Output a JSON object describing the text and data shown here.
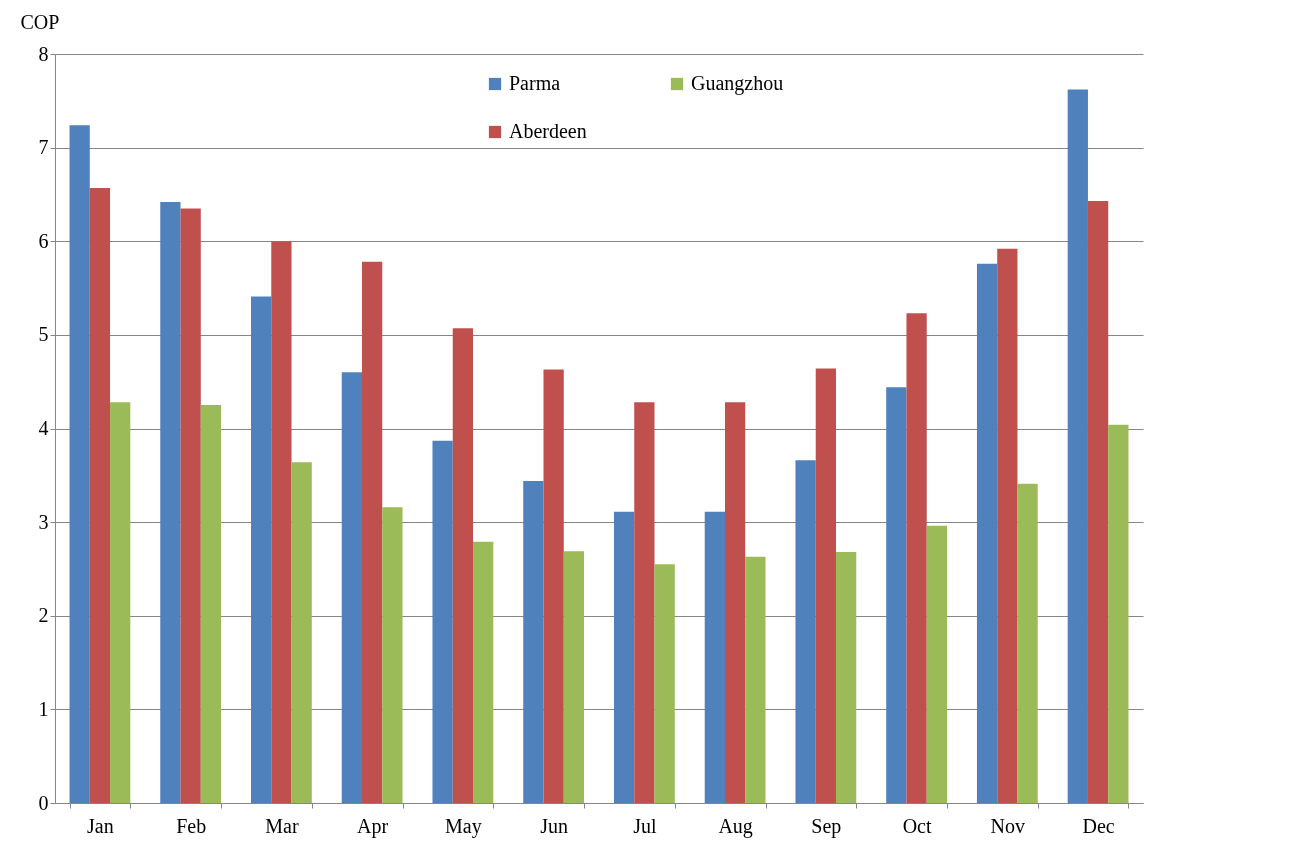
{
  "chart_data": {
    "type": "bar",
    "ylabel": "COP",
    "categories": [
      "Jan",
      "Feb",
      "Mar",
      "Apr",
      "May",
      "Jun",
      "Jul",
      "Aug",
      "Sep",
      "Oct",
      "Nov",
      "Dec"
    ],
    "series": [
      {
        "name": "Parma",
        "color": "#4f81bd",
        "values": [
          7.24,
          6.42,
          5.41,
          4.6,
          3.87,
          3.44,
          3.11,
          3.11,
          3.66,
          4.44,
          5.76,
          7.62
        ]
      },
      {
        "name": "Aberdeen",
        "color": "#c0504d",
        "values": [
          6.57,
          6.35,
          6.0,
          5.78,
          5.07,
          4.63,
          4.28,
          4.28,
          4.64,
          5.23,
          5.92,
          6.43
        ]
      },
      {
        "name": "Guangzhou",
        "color": "#9bbb59",
        "values": [
          4.28,
          4.25,
          3.64,
          3.16,
          2.79,
          2.69,
          2.55,
          2.63,
          2.68,
          2.96,
          3.41,
          4.04
        ]
      }
    ],
    "ylim": [
      0,
      8
    ],
    "yticks": [
      0,
      1,
      2,
      3,
      4,
      5,
      6,
      7,
      8
    ],
    "grid": "y",
    "legend": "top"
  }
}
